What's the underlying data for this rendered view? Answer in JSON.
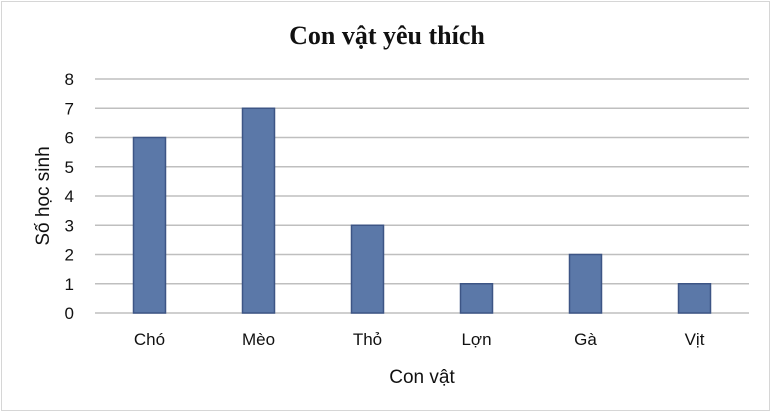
{
  "chart_data": {
    "type": "bar",
    "title": "Con vật yêu thích",
    "xlabel": "Con vật",
    "ylabel": "Số học sinh",
    "categories": [
      "Chó",
      "Mèo",
      "Thỏ",
      "Lợn",
      "Gà",
      "Vịt"
    ],
    "values": [
      6,
      7,
      3,
      1,
      2,
      1
    ],
    "ylim": [
      0,
      8
    ],
    "yticks": [
      "0",
      "1",
      "2",
      "3",
      "4",
      "5",
      "6",
      "7",
      "8"
    ],
    "grid": true,
    "legend": "none",
    "bar_color": "#5b78a8"
  }
}
